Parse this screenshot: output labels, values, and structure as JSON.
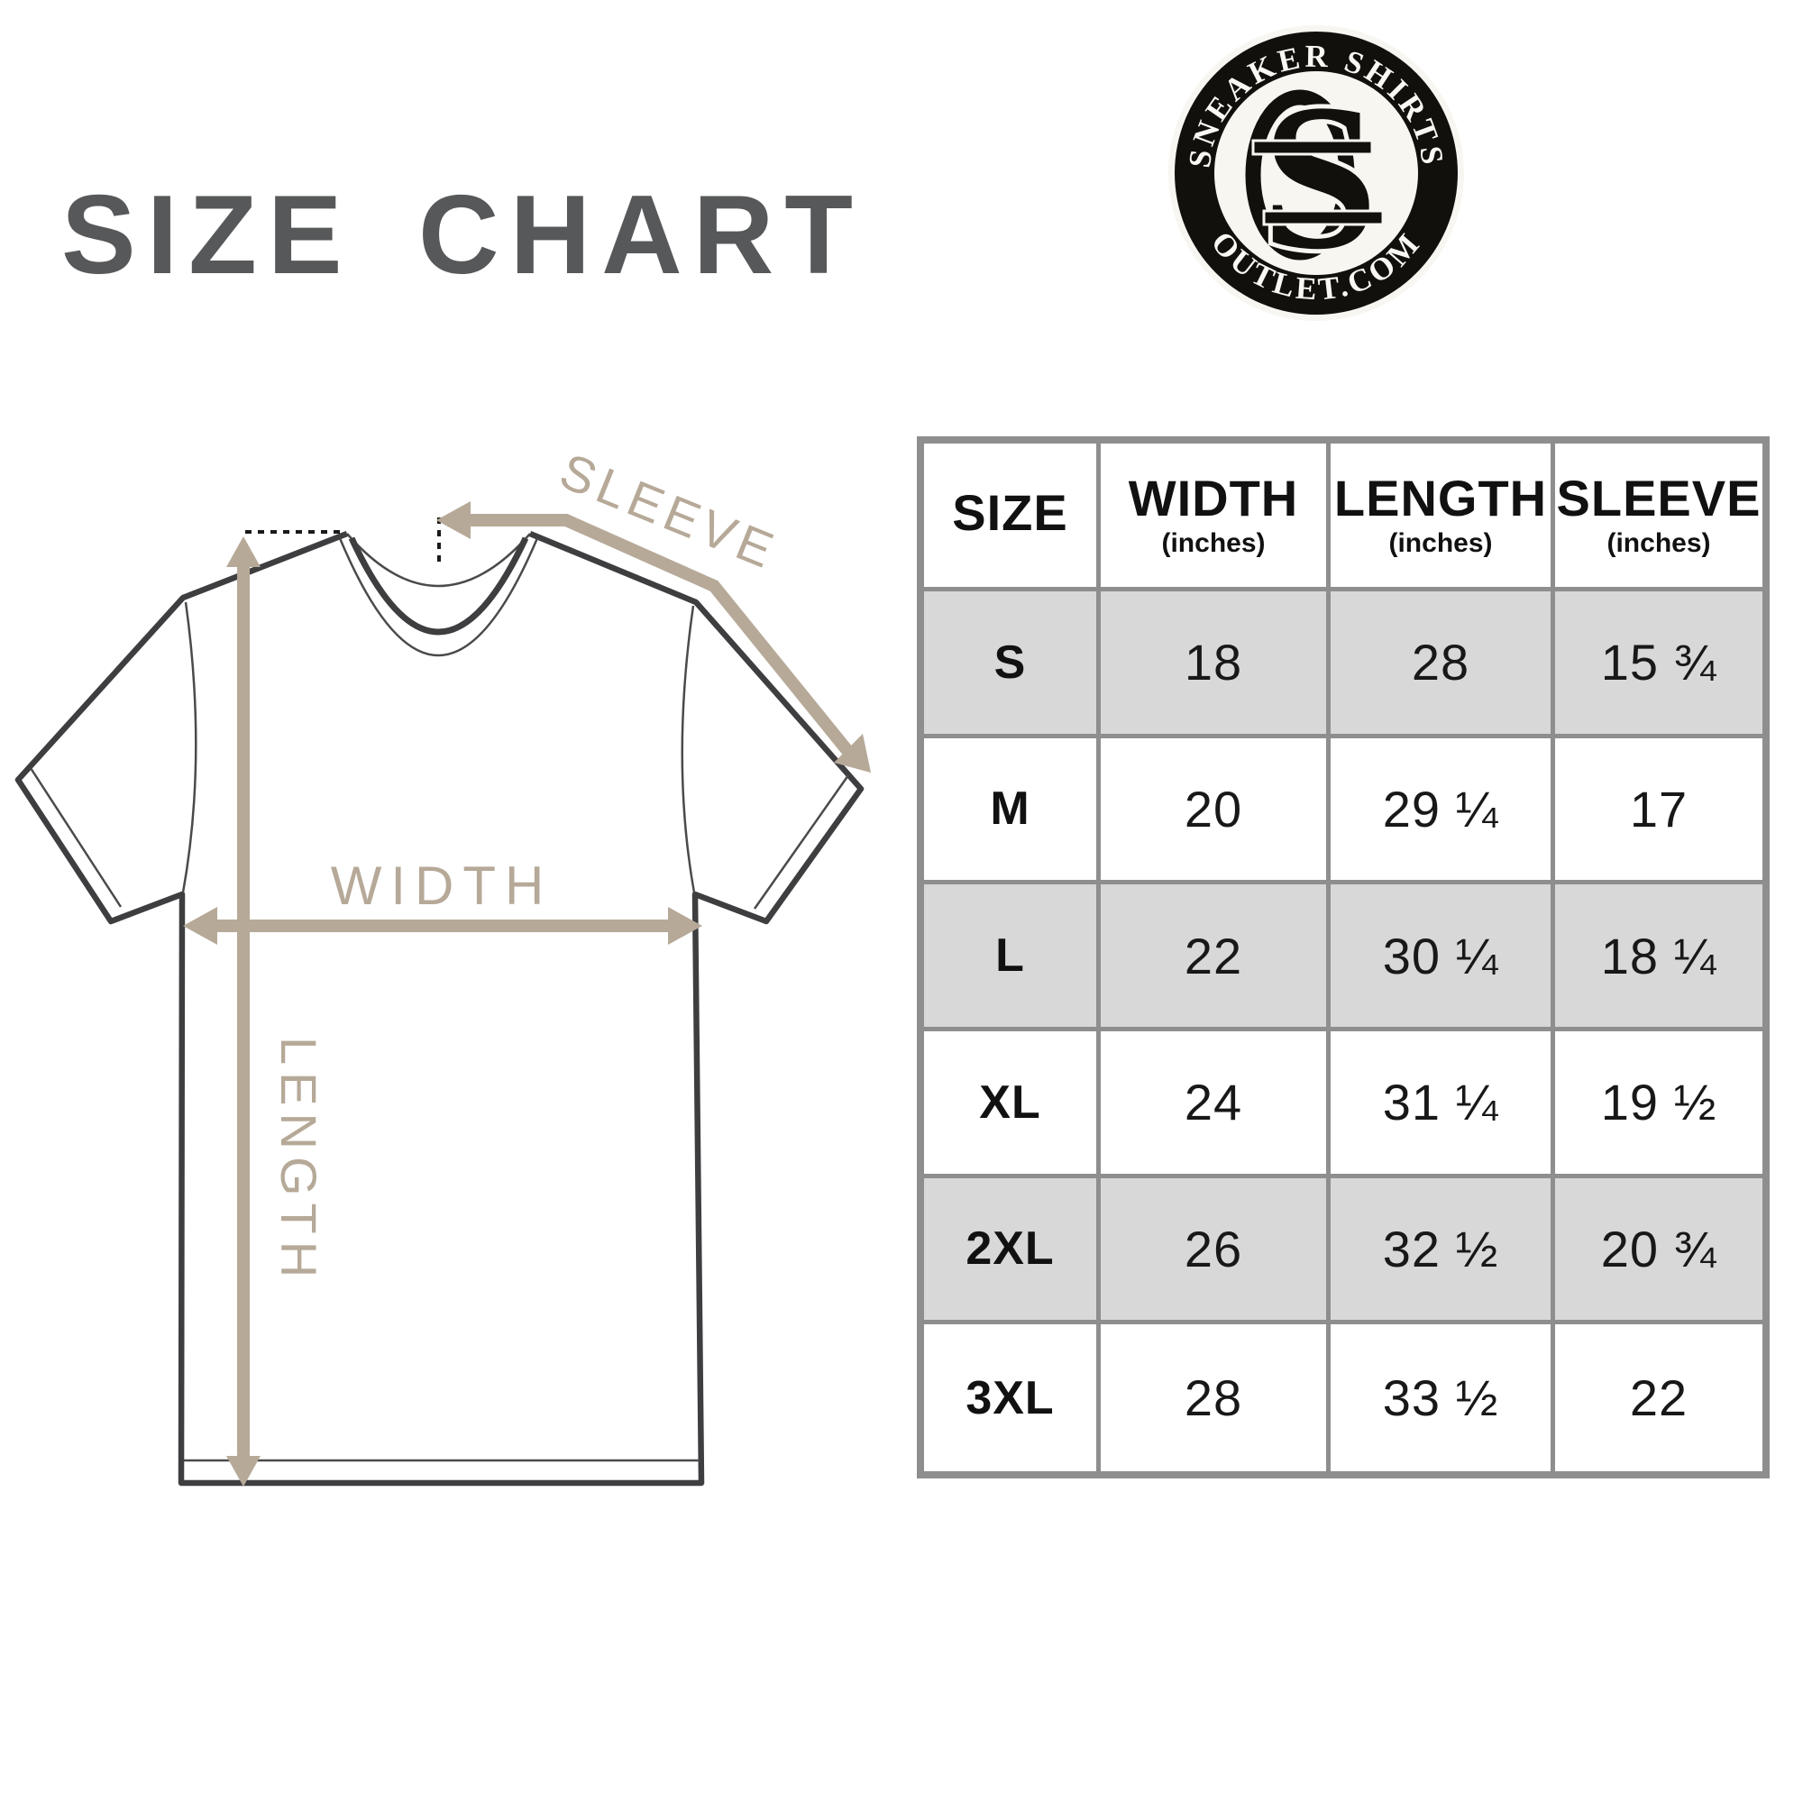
{
  "title": "SIZE CHART",
  "logo": {
    "top_text": "SNEAKER SHIRTS",
    "bottom_text": "OUTLET.COM",
    "monogram_letter": "S"
  },
  "diagram": {
    "width_label": "WIDTH",
    "length_label": "LENGTH",
    "sleeve_label": "SLEEVE"
  },
  "size_table": {
    "columns": [
      {
        "label": "SIZE",
        "sub": ""
      },
      {
        "label": "WIDTH",
        "sub": "(inches)"
      },
      {
        "label": "LENGTH",
        "sub": "(inches)"
      },
      {
        "label": "SLEEVE",
        "sub": "(inches)"
      }
    ],
    "rows": [
      {
        "size": "S",
        "width": "18",
        "length": "28",
        "sleeve": "15 ¾"
      },
      {
        "size": "M",
        "width": "20",
        "length": "29 ¼",
        "sleeve": "17"
      },
      {
        "size": "L",
        "width": "22",
        "length": "30 ¼",
        "sleeve": "18 ¼"
      },
      {
        "size": "XL",
        "width": "24",
        "length": "31 ¼",
        "sleeve": "19 ½"
      },
      {
        "size": "2XL",
        "width": "26",
        "length": "32 ½",
        "sleeve": "20 ¾"
      },
      {
        "size": "3XL",
        "width": "28",
        "length": "33 ½",
        "sleeve": "22"
      }
    ]
  },
  "chart_data": {
    "type": "table",
    "title": "SIZE CHART",
    "columns": [
      "SIZE",
      "WIDTH (inches)",
      "LENGTH (inches)",
      "SLEEVE (inches)"
    ],
    "rows": [
      [
        "S",
        "18",
        "28",
        "15 ¾"
      ],
      [
        "M",
        "20",
        "29 ¼",
        "17"
      ],
      [
        "L",
        "22",
        "30 ¼",
        "18 ¼"
      ],
      [
        "XL",
        "24",
        "31 ¼",
        "19 ½"
      ],
      [
        "2XL",
        "26",
        "32 ½",
        "20 ¾"
      ],
      [
        "3XL",
        "28",
        "33 ½",
        "22"
      ]
    ]
  },
  "colors": {
    "accent_tan": "#b6a998",
    "title_gray": "#57585a",
    "table_border": "#8e8e8e",
    "row_shade": "#d8d8d8",
    "logo_black": "#12100d",
    "logo_cream": "#f8f6f0",
    "outline_dark": "#3e3e40"
  }
}
